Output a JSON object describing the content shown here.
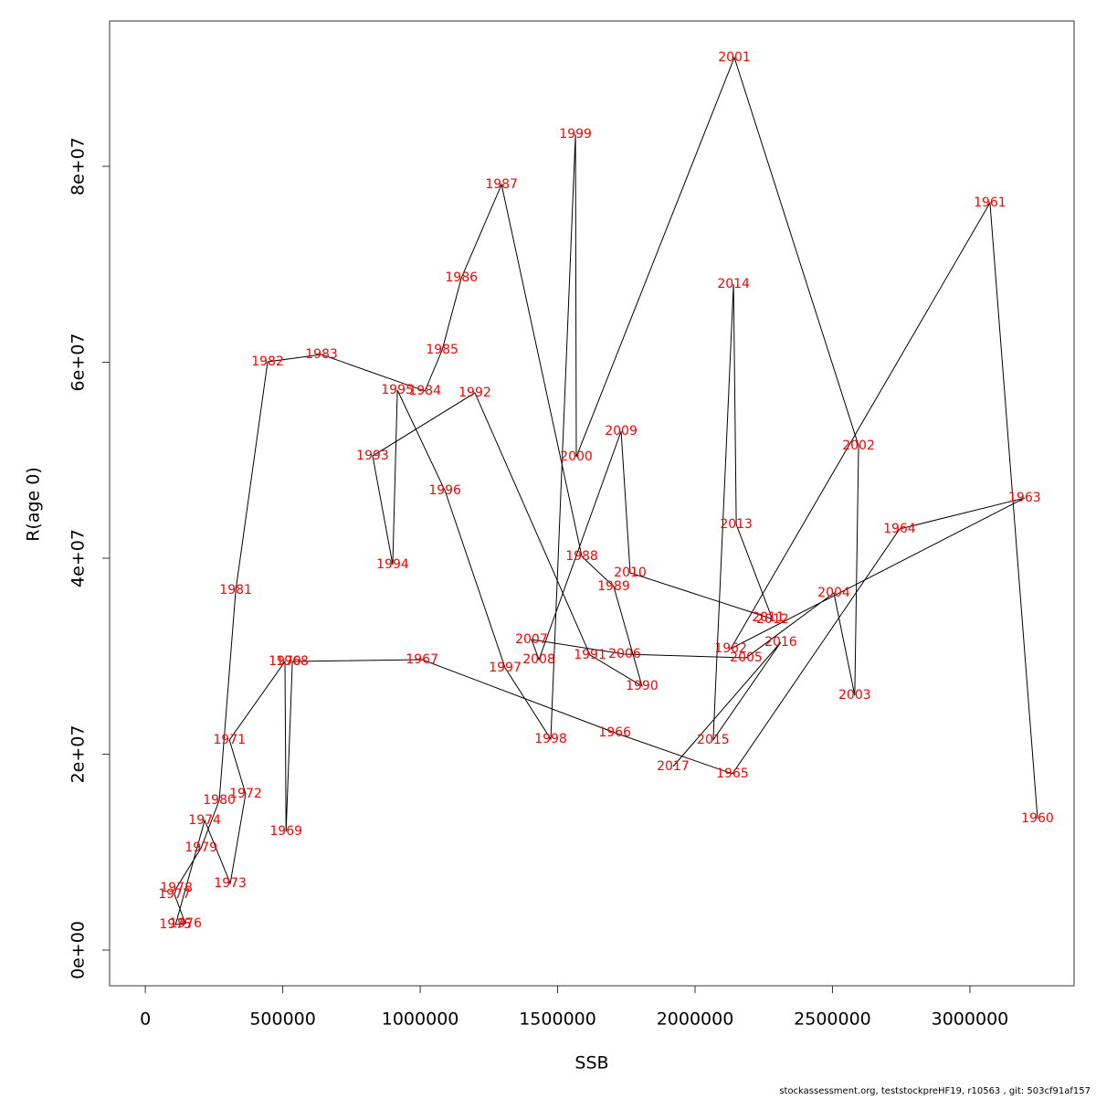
{
  "chart_data": {
    "type": "line",
    "x_label": "SSB",
    "y_label": "R(age 0)",
    "footnote": "stockassessment.org, teststockpreHF19, r10563 , git: 503cf91af157",
    "labels": [
      "1960",
      "1961",
      "1962",
      "1963",
      "1964",
      "1965",
      "1966",
      "1967",
      "1968",
      "1969",
      "1970",
      "1971",
      "1972",
      "1973",
      "1974",
      "1975",
      "1976",
      "1977",
      "1978",
      "1979",
      "1980",
      "1981",
      "1982",
      "1983",
      "1984",
      "1985",
      "1986",
      "1987",
      "1988",
      "1989",
      "1990",
      "1991",
      "1992",
      "1993",
      "1994",
      "1995",
      "1996",
      "1997",
      "1998",
      "1999",
      "2000",
      "2001",
      "2002",
      "2003",
      "2004",
      "2005",
      "2006",
      "2007",
      "2008",
      "2009",
      "2010",
      "2011",
      "2012",
      "2013",
      "2014",
      "2015",
      "2016",
      "2017"
    ],
    "x": [
      3246000,
      3073000,
      2130000,
      3199000,
      2744000,
      2136000,
      1708000,
      1007000,
      535000,
      512000,
      508000,
      306000,
      365000,
      309000,
      216000,
      110000,
      146000,
      106000,
      113000,
      203000,
      269000,
      329000,
      445000,
      641000,
      1017000,
      1080000,
      1150000,
      1296000,
      1588000,
      1704000,
      1807000,
      1618000,
      1199000,
      827000,
      900000,
      917000,
      1090000,
      1309000,
      1475000,
      1565000,
      1568000,
      2143000,
      2595000,
      2581000,
      2505000,
      2186000,
      1744000,
      1405000,
      1432000,
      1731000,
      1764000,
      2266000,
      2282000,
      2150000,
      2140000,
      2066000,
      2312000,
      1920000
    ],
    "values": [
      13430000,
      76270000,
      30770000,
      46150000,
      42980000,
      18000000,
      22190000,
      29650000,
      29460000,
      12120000,
      29460000,
      21450000,
      15940000,
      6810000,
      13240000,
      2610000,
      2700000,
      5690000,
      6340000,
      10440000,
      15290000,
      36740000,
      60050000,
      60790000,
      57060000,
      61260000,
      68620000,
      78140000,
      40190000,
      37110000,
      26950000,
      30120000,
      56880000,
      50440000,
      39350000,
      57160000,
      46900000,
      28810000,
      21540000,
      83260000,
      50350000,
      91100000,
      51470000,
      26010000,
      36460000,
      29840000,
      30210000,
      31700000,
      29650000,
      52960000,
      38510000,
      33940000,
      33750000,
      43450000,
      67970000,
      21450000,
      31420000,
      18740000
    ],
    "line_color": "#000000",
    "label_color": "#ff0000",
    "xlim": [
      -130000,
      3379000
    ],
    "ylim": [
      -3640000,
      94830000
    ],
    "xticks": [
      0,
      500000,
      1000000,
      1500000,
      2000000,
      2500000,
      3000000
    ],
    "yticks": [
      {
        "value": 0,
        "label": "0e+00"
      },
      {
        "value": 20000000,
        "label": "2e+07"
      },
      {
        "value": 40000000,
        "label": "4e+07"
      },
      {
        "value": 60000000,
        "label": "6e+07"
      },
      {
        "value": 80000000,
        "label": "8e+07"
      }
    ]
  }
}
